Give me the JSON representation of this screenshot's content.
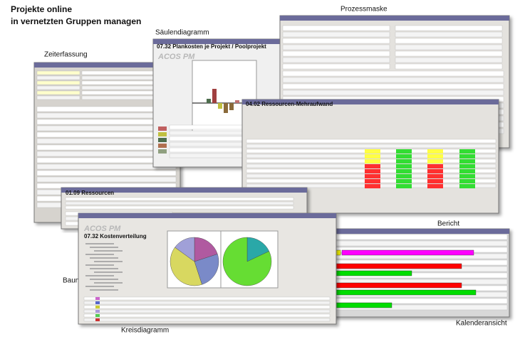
{
  "header": {
    "title_lines": [
      "Projekte online",
      "in vernetzten Gruppen managen"
    ]
  },
  "labels": [
    "Zeiterfassung",
    "Säulendiagramm",
    "Prozessmaske",
    "Bericht",
    "Baumdiagramm",
    "Kreisdiagramm",
    "Kalenderansicht"
  ],
  "panels": {
    "column_chart_title": "07.32 Plankosten je Projekt / Poolprojekt",
    "resource_overhead_title": "04.02 Ressourcen-Mehraufwand",
    "resources_title": "01.09 Ressourcen",
    "cost_distribution_title": "07.32 Kostenverteilung",
    "brand": "ACOS PM"
  }
}
